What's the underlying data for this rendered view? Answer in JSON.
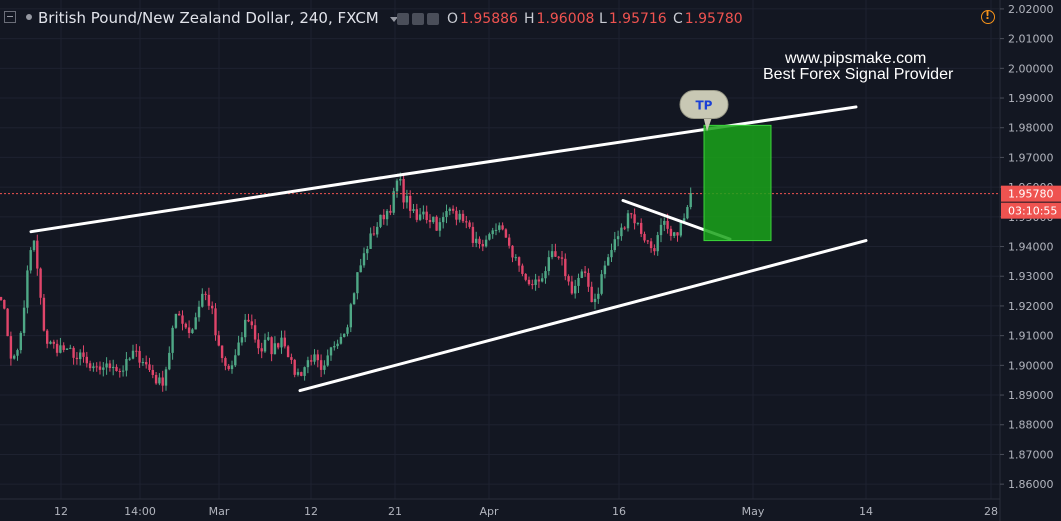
{
  "header": {
    "symbol_title": "British Pound/New Zealand Dollar, 240, FXCM",
    "ohlc": [
      {
        "key": "O",
        "value": "1.95886"
      },
      {
        "key": "H",
        "value": "1.96008"
      },
      {
        "key": "L",
        "value": "1.95716"
      },
      {
        "key": "C",
        "value": "1.95780"
      }
    ]
  },
  "watermark": {
    "line1": "www.pipsmake.com",
    "line2": "Best Forex Signal Provider"
  },
  "colors": {
    "background": "#131722",
    "bullish": "#4fa886",
    "bearish": "#e0456a",
    "trendline": "#ffffff",
    "target_box": "#1aa31a",
    "price_tag": "#ef5350",
    "axis_text": "#b2b5be"
  },
  "chart_data": {
    "type": "candlestick",
    "title": "British Pound/New Zealand Dollar, 240, FXCM",
    "ylim": [
      1.855,
      2.023
    ],
    "y_ticks": [
      "2.02000",
      "2.01000",
      "2.00000",
      "1.99000",
      "1.98000",
      "1.97000",
      "1.96000",
      "1.95000",
      "1.94000",
      "1.93000",
      "1.92000",
      "1.91000",
      "1.90000",
      "1.89000",
      "1.88000",
      "1.87000",
      "1.86000"
    ],
    "x_ticks": [
      "12",
      "14:00",
      "Mar",
      "12",
      "21",
      "Apr",
      "16",
      "May",
      "14",
      "28"
    ],
    "last_price": "1.95780",
    "countdown": "03:10:55",
    "anchor_closes": [
      [
        0,
        1.926
      ],
      [
        7,
        1.912
      ],
      [
        12,
        1.901
      ],
      [
        17,
        1.904
      ],
      [
        24,
        1.918
      ],
      [
        27,
        1.93
      ],
      [
        33,
        1.944
      ],
      [
        37,
        1.933
      ],
      [
        42,
        1.917
      ],
      [
        46,
        1.908
      ],
      [
        51,
        1.907
      ],
      [
        56,
        1.906
      ],
      [
        62,
        1.906
      ],
      [
        67,
        1.904
      ],
      [
        72,
        1.905
      ],
      [
        77,
        1.902
      ],
      [
        82,
        1.903
      ],
      [
        87,
        1.9
      ],
      [
        92,
        1.898
      ],
      [
        97,
        1.898
      ],
      [
        103,
        1.9
      ],
      [
        108,
        1.899
      ],
      [
        113,
        1.901
      ],
      [
        118,
        1.898
      ],
      [
        123,
        1.899
      ],
      [
        128,
        1.901
      ],
      [
        133,
        1.904
      ],
      [
        138,
        1.903
      ],
      [
        143,
        1.902
      ],
      [
        148,
        1.899
      ],
      [
        153,
        1.897
      ],
      [
        158,
        1.894
      ],
      [
        163,
        1.895
      ],
      [
        168,
        1.902
      ],
      [
        174,
        1.915
      ],
      [
        180,
        1.917
      ],
      [
        186,
        1.913
      ],
      [
        191,
        1.911
      ],
      [
        197,
        1.918
      ],
      [
        202,
        1.924
      ],
      [
        207,
        1.923
      ],
      [
        212,
        1.918
      ],
      [
        217,
        1.907
      ],
      [
        222,
        1.902
      ],
      [
        227,
        1.898
      ],
      [
        232,
        1.9
      ],
      [
        237,
        1.904
      ],
      [
        242,
        1.91
      ],
      [
        247,
        1.917
      ],
      [
        252,
        1.913
      ],
      [
        257,
        1.907
      ],
      [
        262,
        1.905
      ],
      [
        267,
        1.909
      ],
      [
        272,
        1.905
      ],
      [
        277,
        1.907
      ],
      [
        282,
        1.91
      ],
      [
        287,
        1.906
      ],
      [
        292,
        1.899
      ],
      [
        297,
        1.897
      ],
      [
        302,
        1.898
      ],
      [
        307,
        1.901
      ],
      [
        312,
        1.903
      ],
      [
        317,
        1.901
      ],
      [
        322,
        1.896
      ],
      [
        327,
        1.901
      ],
      [
        332,
        1.906
      ],
      [
        337,
        1.909
      ],
      [
        342,
        1.911
      ],
      [
        347,
        1.914
      ],
      [
        352,
        1.922
      ],
      [
        357,
        1.93
      ],
      [
        362,
        1.935
      ],
      [
        367,
        1.94
      ],
      [
        372,
        1.944
      ],
      [
        377,
        1.947
      ],
      [
        382,
        1.95
      ],
      [
        387,
        1.952
      ],
      [
        392,
        1.954
      ],
      [
        396,
        1.961
      ],
      [
        399,
        1.963
      ],
      [
        403,
        1.957
      ],
      [
        408,
        1.955
      ],
      [
        413,
        1.951
      ],
      [
        418,
        1.948
      ],
      [
        423,
        1.953
      ],
      [
        428,
        1.949
      ],
      [
        433,
        1.95
      ],
      [
        438,
        1.946
      ],
      [
        443,
        1.949
      ],
      [
        448,
        1.952
      ],
      [
        453,
        1.954
      ],
      [
        458,
        1.949
      ],
      [
        463,
        1.95
      ],
      [
        468,
        1.946
      ],
      [
        473,
        1.943
      ],
      [
        478,
        1.94
      ],
      [
        483,
        1.938
      ],
      [
        488,
        1.942
      ],
      [
        493,
        1.946
      ],
      [
        498,
        1.947
      ],
      [
        503,
        1.944
      ],
      [
        508,
        1.943
      ],
      [
        513,
        1.936
      ],
      [
        518,
        1.934
      ],
      [
        523,
        1.931
      ],
      [
        528,
        1.926
      ],
      [
        533,
        1.928
      ],
      [
        538,
        1.928
      ],
      [
        543,
        1.931
      ],
      [
        548,
        1.934
      ],
      [
        553,
        1.937
      ],
      [
        558,
        1.935
      ],
      [
        563,
        1.934
      ],
      [
        568,
        1.928
      ],
      [
        573,
        1.925
      ],
      [
        578,
        1.929
      ],
      [
        583,
        1.931
      ],
      [
        588,
        1.927
      ],
      [
        593,
        1.921
      ],
      [
        598,
        1.925
      ],
      [
        603,
        1.932
      ],
      [
        608,
        1.936
      ],
      [
        613,
        1.94
      ],
      [
        618,
        1.944
      ],
      [
        623,
        1.946
      ],
      [
        628,
        1.952
      ],
      [
        633,
        1.95
      ],
      [
        638,
        1.947
      ],
      [
        643,
        1.944
      ],
      [
        648,
        1.941
      ],
      [
        653,
        1.939
      ],
      [
        658,
        1.943
      ],
      [
        663,
        1.948
      ],
      [
        668,
        1.944
      ],
      [
        673,
        1.942
      ],
      [
        678,
        1.946
      ],
      [
        683,
        1.948
      ],
      [
        688,
        1.953
      ],
      [
        692,
        1.958
      ]
    ],
    "annotations": [
      {
        "type": "trendline",
        "from": [
          31,
          1.945
        ],
        "to": [
          398,
          1.964
        ]
      },
      {
        "type": "trendline",
        "from": [
          398,
          1.964
        ],
        "to": [
          856,
          1.987
        ]
      },
      {
        "type": "trendline",
        "from": [
          300,
          1.8915
        ],
        "to": [
          866,
          1.942
        ]
      },
      {
        "type": "trendline",
        "from": [
          623,
          1.9555
        ],
        "to": [
          730,
          1.9425
        ]
      },
      {
        "type": "box",
        "x": [
          704,
          771
        ],
        "y": [
          1.942,
          1.9808
        ]
      },
      {
        "type": "callout",
        "text": "TP",
        "at": [
          705,
          1.9875
        ]
      }
    ]
  },
  "x_tick_positions": [
    61,
    140,
    219,
    311,
    395,
    489,
    619,
    753,
    866,
    991
  ]
}
